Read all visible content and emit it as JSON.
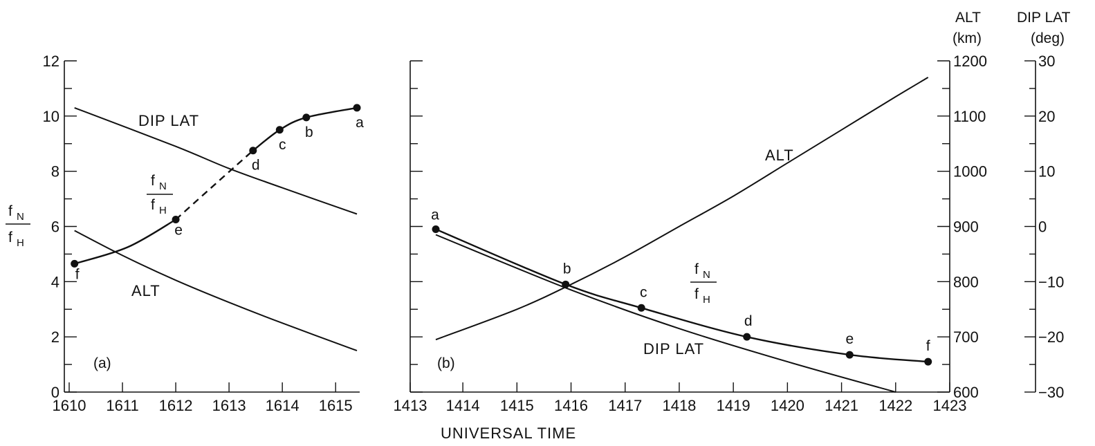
{
  "figure": {
    "xlabel": "UNIVERSAL TIME"
  },
  "axes_text": {
    "y_left_main": "f",
    "y_left_main_sub": "N",
    "y_left_den": "f",
    "y_left_den_sub": "H",
    "alt_title_1": "ALT",
    "alt_title_2": "(km)",
    "dip_title_1": "DIP LAT",
    "dip_title_2": "(deg)"
  },
  "panel_labels": {
    "a": "(a)",
    "b": "(b)"
  },
  "curve_labels": {
    "a_dip": "DIP LAT",
    "a_alt": "ALT",
    "b_alt": "ALT",
    "b_dip": "DIP LAT",
    "fn": "f",
    "fn_sub": "N",
    "fh": "f",
    "fh_sub": "H"
  },
  "chart_data": [
    {
      "type": "line",
      "panel": "(a)",
      "x_ticks": [
        "1610",
        "1611",
        "1612",
        "1613",
        "1614",
        "1615"
      ],
      "xlim": [
        1610,
        1615.6
      ],
      "y_ticks": [
        "0",
        "2",
        "4",
        "6",
        "8",
        "10",
        "12"
      ],
      "ylim": [
        0,
        12
      ],
      "ylabel": "fN/fH",
      "series": [
        {
          "name": "fN/fH",
          "points": [
            {
              "x": 1610.1,
              "y": 4.65,
              "label": "f"
            },
            {
              "x": 1612.0,
              "y": 6.25,
              "label": "e"
            },
            {
              "x": 1613.45,
              "y": 8.75,
              "label": "d"
            },
            {
              "x": 1613.95,
              "y": 9.5,
              "label": "c"
            },
            {
              "x": 1614.45,
              "y": 9.95,
              "label": "b"
            },
            {
              "x": 1615.4,
              "y": 10.3,
              "label": "a"
            }
          ],
          "dashed_between": [
            "e",
            "d"
          ]
        },
        {
          "name": "DIP LAT",
          "axis": "fN/fH scale",
          "x": [
            1610.1,
            1612.0,
            1613.0,
            1614.0,
            1615.4
          ],
          "y": [
            10.3,
            8.9,
            8.1,
            7.4,
            6.45
          ]
        },
        {
          "name": "ALT",
          "axis": "fN/fH scale",
          "x": [
            1610.1,
            1611.0,
            1612.0,
            1613.0,
            1614.0,
            1615.4
          ],
          "y": [
            5.85,
            4.95,
            4.05,
            3.25,
            2.5,
            1.5
          ]
        }
      ]
    },
    {
      "type": "line",
      "panel": "(b)",
      "x_ticks": [
        "1413",
        "1414",
        "1415",
        "1416",
        "1417",
        "1418",
        "1419",
        "1420",
        "1421",
        "1422",
        "1423"
      ],
      "xlim": [
        1413,
        1423
      ],
      "alt_ticks": [
        "600",
        "700",
        "800",
        "900",
        "1000",
        "1100",
        "1200"
      ],
      "alt_lim": [
        600,
        1200
      ],
      "alt_label": "ALT (km)",
      "dip_ticks": [
        "−30",
        "−20",
        "−10",
        "0",
        "10",
        "20",
        "30"
      ],
      "dip_lim": [
        -30,
        30
      ],
      "dip_label": "DIP LAT (deg)",
      "series": [
        {
          "name": "fN/fH",
          "axis": "fN/fH scale (0-12)",
          "points": [
            {
              "x": 1413.5,
              "y": 5.9,
              "label": "a"
            },
            {
              "x": 1415.9,
              "y": 3.9,
              "label": "b"
            },
            {
              "x": 1417.3,
              "y": 3.05,
              "label": "c"
            },
            {
              "x": 1419.25,
              "y": 2.0,
              "label": "d"
            },
            {
              "x": 1421.15,
              "y": 1.35,
              "label": "e"
            },
            {
              "x": 1422.6,
              "y": 1.1,
              "label": "f"
            }
          ]
        },
        {
          "name": "ALT",
          "axis": "ALT (km)",
          "x": [
            1413.5,
            1415,
            1416,
            1417,
            1418,
            1419,
            1420,
            1421,
            1422,
            1422.6
          ],
          "y": [
            695,
            750,
            795,
            845,
            900,
            955,
            1015,
            1075,
            1135,
            1170
          ]
        },
        {
          "name": "DIP LAT",
          "axis": "DIP LAT (deg)",
          "x": [
            1413.5,
            1416,
            1418,
            1420,
            1422
          ],
          "y": [
            -1.5,
            -11.5,
            -18.5,
            -24.5,
            -30
          ]
        }
      ]
    }
  ]
}
